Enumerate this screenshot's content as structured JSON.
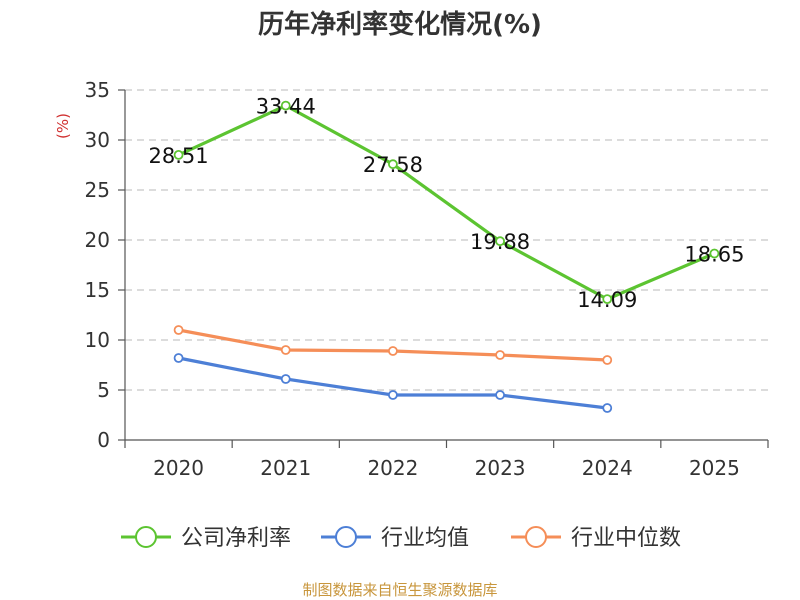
{
  "chart_data": {
    "type": "line",
    "title": "历年净利率变化情况(%)",
    "ylabel": "(%)",
    "xlabel": "",
    "categories": [
      "2020",
      "2021",
      "2022",
      "2023",
      "2024",
      "2025"
    ],
    "yticks": [
      0,
      5,
      10,
      15,
      20,
      25,
      30,
      35
    ],
    "ylim": [
      0,
      35
    ],
    "grid": true,
    "legend_position": "bottom",
    "series": [
      {
        "name": "公司净利率",
        "color": "#5cc431",
        "values": [
          28.51,
          33.44,
          27.58,
          19.88,
          14.09,
          18.65
        ],
        "labels": [
          "28.51",
          "33.44",
          "27.58",
          "19.88",
          "14.09",
          "18.65"
        ]
      },
      {
        "name": "行业均值",
        "color": "#4d7fd6",
        "values": [
          8.2,
          6.1,
          4.5,
          4.5,
          3.2,
          null
        ]
      },
      {
        "name": "行业中位数",
        "color": "#f58e58",
        "values": [
          11.0,
          9.0,
          8.9,
          8.5,
          8.0,
          null
        ]
      }
    ],
    "source": "制图数据来自恒生聚源数据库",
    "source_color": "#c8963c",
    "unit_color": "#d03030"
  }
}
